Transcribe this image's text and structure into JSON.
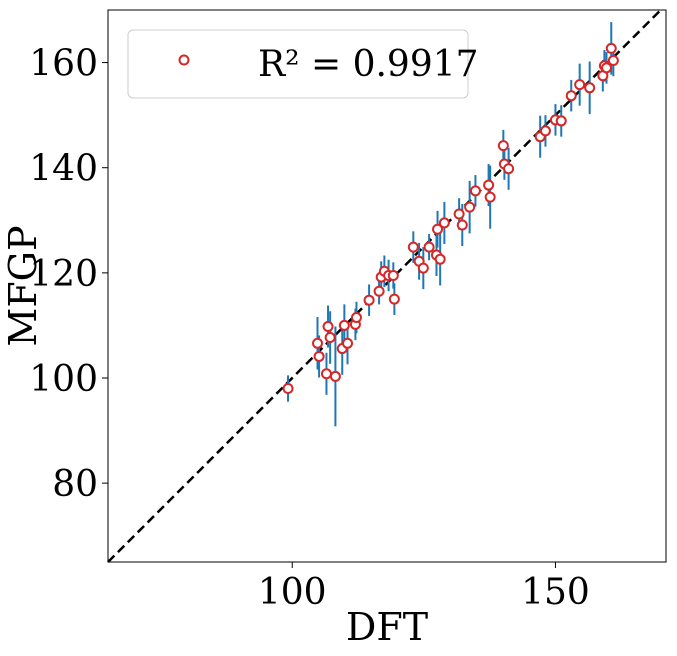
{
  "chart_data": {
    "type": "scatter",
    "xlabel": "DFT",
    "ylabel": "MFGP",
    "x": [
      99.2,
      104.8,
      105.1,
      106.8,
      107.2,
      106.5,
      108.2,
      109.5,
      109.9,
      110.5,
      112.0,
      112.2,
      114.6,
      116.5,
      116.9,
      117.5,
      118.3,
      119.2,
      119.4,
      123.0,
      124.1,
      124.9,
      126.0,
      127.4,
      128.1,
      127.6,
      128.9,
      131.7,
      132.3,
      133.7,
      134.8,
      137.3,
      137.6,
      140.1,
      140.3,
      141.1,
      147.1,
      148.1,
      150.0,
      151.1,
      153.0,
      154.6,
      156.5,
      159.0,
      159.3,
      159.7,
      161.0,
      160.6
    ],
    "series": [
      {
        "name": "R² = 0.9917",
        "color": "#d62728",
        "values": [
          98.0,
          106.6,
          104.1,
          109.8,
          107.7,
          100.8,
          100.3,
          105.6,
          110.0,
          106.6,
          110.2,
          111.5,
          114.8,
          116.5,
          119.2,
          120.3,
          119.5,
          119.5,
          115.0,
          124.9,
          122.2,
          120.9,
          124.9,
          123.4,
          122.6,
          128.3,
          129.5,
          131.2,
          129.1,
          132.5,
          135.6,
          136.7,
          134.4,
          144.2,
          140.7,
          139.8,
          145.9,
          147.0,
          149.1,
          148.9,
          153.7,
          155.8,
          155.2,
          157.5,
          159.4,
          159.0,
          160.4,
          162.7
        ],
        "errors": [
          2.5,
          5,
          4,
          4,
          5,
          4,
          9.5,
          5,
          4,
          4,
          3,
          3,
          3,
          2.5,
          3,
          3,
          3,
          2.5,
          3,
          3,
          3.5,
          4,
          2.5,
          4,
          5,
          3.5,
          4,
          3,
          4,
          5,
          3,
          4,
          6,
          3,
          3,
          4,
          4,
          3,
          3,
          3,
          3,
          4,
          5,
          3,
          3,
          3,
          3,
          5
        ],
        "error_color": "#1f77b4"
      }
    ],
    "xlim": [
      65,
      171
    ],
    "ylim": [
      65,
      170
    ],
    "xticks": [
      100,
      150
    ],
    "yticks": [
      80,
      100,
      120,
      140,
      160
    ],
    "identity_line": true,
    "legend": "upper left"
  }
}
